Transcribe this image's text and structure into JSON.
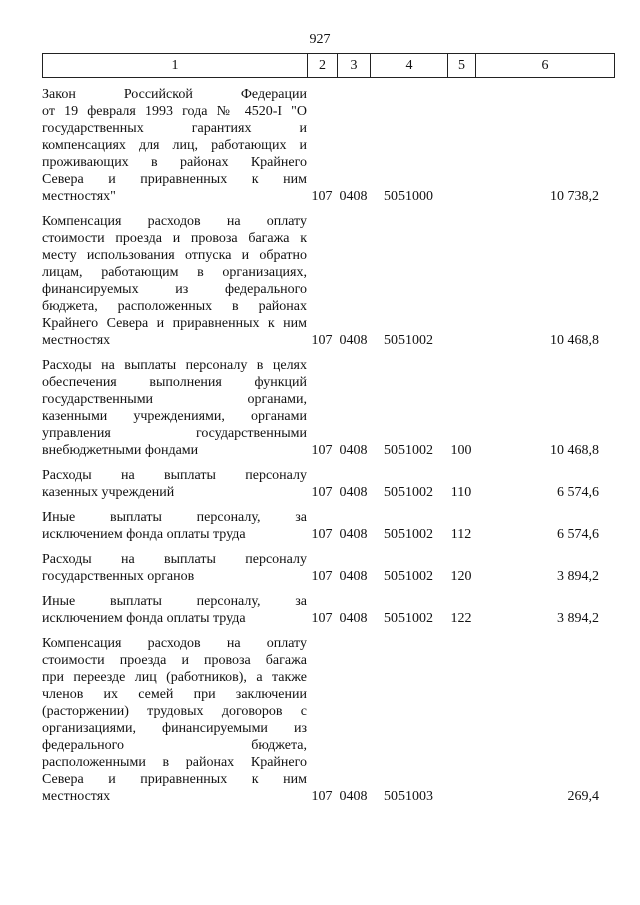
{
  "page_number": "927",
  "header": [
    "1",
    "2",
    "3",
    "4",
    "5",
    "6"
  ],
  "rows": [
    {
      "lines": [
        "Закон Российской Федерации",
        "от 19 февраля 1993 года № 4520-I \"О",
        "государственных гарантиях и",
        "компенсациях для лиц, работающих и",
        "проживающих в районах Крайнего",
        "Севера и приравненных к ним",
        "местностях\""
      ],
      "c2": "107",
      "c3": "0408",
      "c4": "5051000",
      "c5": "",
      "c6": "10 738,2"
    },
    {
      "lines": [
        "Компенсация расходов на оплату",
        "стоимости проезда и провоза багажа к",
        "месту использования отпуска и обратно",
        "лицам, работающим в организациях,",
        "финансируемых из федерального",
        "бюджета, расположенных в районах",
        "Крайнего Севера и приравненных к ним",
        "местностях"
      ],
      "c2": "107",
      "c3": "0408",
      "c4": "5051002",
      "c5": "",
      "c6": "10 468,8"
    },
    {
      "lines": [
        "Расходы на выплаты персоналу в целях",
        "обеспечения выполнения функций",
        "государственными органами,",
        "казенными учреждениями, органами",
        "управления государственными",
        "внебюджетными фондами"
      ],
      "c2": "107",
      "c3": "0408",
      "c4": "5051002",
      "c5": "100",
      "c6": "10 468,8"
    },
    {
      "lines": [
        "Расходы на выплаты персоналу",
        "казенных учреждений"
      ],
      "c2": "107",
      "c3": "0408",
      "c4": "5051002",
      "c5": "110",
      "c6": "6 574,6"
    },
    {
      "lines": [
        "Иные выплаты персоналу, за",
        "исключением фонда оплаты труда"
      ],
      "c2": "107",
      "c3": "0408",
      "c4": "5051002",
      "c5": "112",
      "c6": "6 574,6"
    },
    {
      "lines": [
        "Расходы на выплаты персоналу",
        "государственных органов"
      ],
      "c2": "107",
      "c3": "0408",
      "c4": "5051002",
      "c5": "120",
      "c6": "3 894,2"
    },
    {
      "lines": [
        "Иные выплаты персоналу, за",
        "исключением фонда оплаты труда"
      ],
      "c2": "107",
      "c3": "0408",
      "c4": "5051002",
      "c5": "122",
      "c6": "3 894,2"
    },
    {
      "lines": [
        "Компенсация расходов на оплату",
        "стоимости проезда и провоза багажа",
        "при переезде лиц (работников), а также",
        "членов их семей при заключении",
        "(расторжении) трудовых договоров с",
        "организациями, финансируемыми из",
        "федерального бюджета,",
        "расположенными в районах Крайнего",
        "Севера и приравненных к ним",
        "местностях"
      ],
      "c2": "107",
      "c3": "0408",
      "c4": "5051003",
      "c5": "",
      "c6": "269,4"
    }
  ]
}
